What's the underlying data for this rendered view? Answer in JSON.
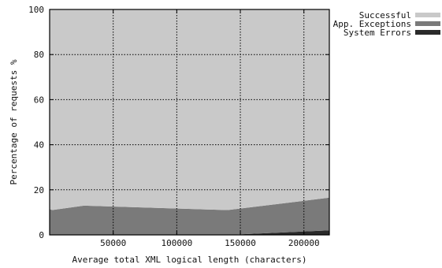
{
  "chart_data": {
    "type": "area",
    "stacked": true,
    "xlabel": "Average total XML logical length (characters)",
    "ylabel": "Percentage of requests %",
    "xlim": [
      0,
      220000
    ],
    "ylim": [
      0,
      100
    ],
    "x_ticks": [
      50000,
      100000,
      150000,
      200000
    ],
    "y_ticks": [
      0,
      20,
      40,
      60,
      80,
      100
    ],
    "grid": true,
    "legend_position": "outside-top-right",
    "series": [
      {
        "name": "System Errors",
        "color": "#2a2a2a",
        "points": [
          [
            0,
            0
          ],
          [
            27000,
            0
          ],
          [
            140000,
            0
          ],
          [
            220000,
            2
          ]
        ]
      },
      {
        "name": "App. Exceptions",
        "color": "#7a7a7a",
        "points": [
          [
            0,
            11.5
          ],
          [
            2000,
            11
          ],
          [
            27000,
            13
          ],
          [
            140000,
            11
          ],
          [
            220000,
            14.5
          ]
        ]
      },
      {
        "name": "Successful",
        "color": "#c9c9c9",
        "points": [
          [
            0,
            88.5
          ],
          [
            2000,
            89
          ],
          [
            27000,
            87
          ],
          [
            140000,
            89
          ],
          [
            220000,
            83.5
          ]
        ]
      }
    ],
    "legend_order": [
      "Successful",
      "App. Exceptions",
      "System Errors"
    ]
  }
}
